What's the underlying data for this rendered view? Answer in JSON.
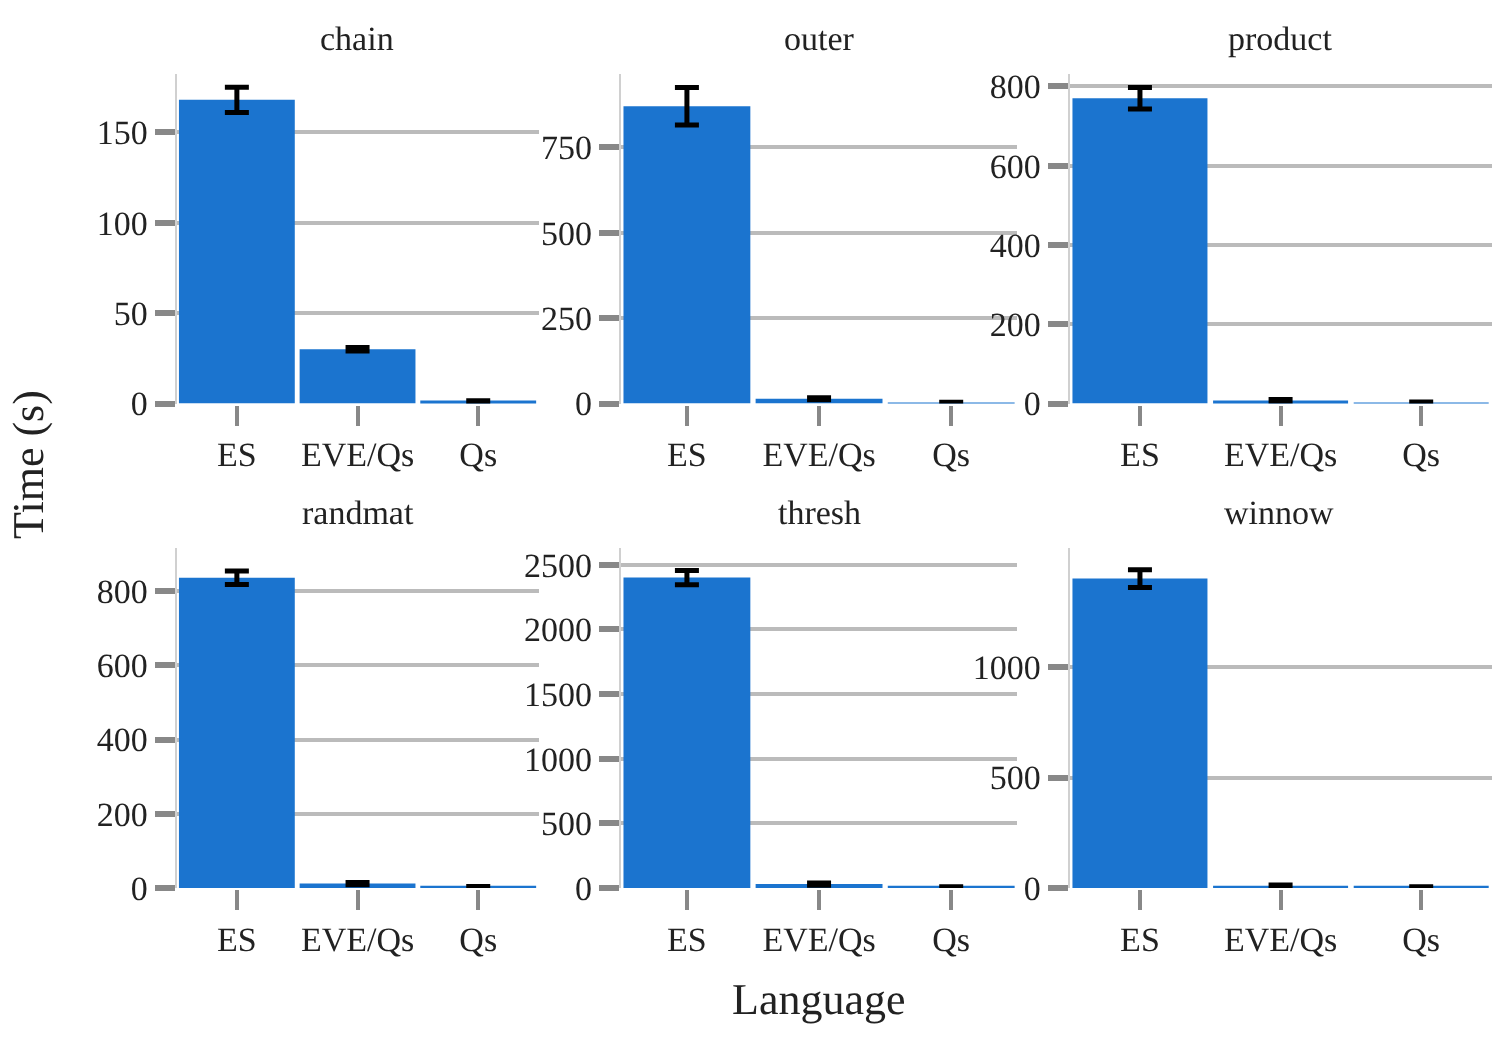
{
  "chart_data": [
    {
      "type": "bar",
      "title": "chain",
      "ylabel": "Time (s)",
      "categories": [
        "ES",
        "EVE/Qs",
        "Qs"
      ],
      "values": [
        168,
        30,
        1
      ],
      "errors": [
        7,
        1,
        0.5
      ],
      "color": "#1b74cf",
      "ylim": [
        0,
        182
      ],
      "yticks": [
        0,
        50,
        100,
        150
      ],
      "grid": "y"
    },
    {
      "type": "bar",
      "title": "outer",
      "categories": [
        "ES",
        "EVE/Qs",
        "Qs"
      ],
      "values": [
        870,
        14,
        2
      ],
      "errors": [
        55,
        3,
        2
      ],
      "color": "#1b74cf",
      "ylim": [
        0,
        963
      ],
      "yticks": [
        0,
        250,
        500,
        750
      ],
      "grid": "y"
    },
    {
      "type": "bar",
      "title": "product",
      "categories": [
        "ES",
        "EVE/Qs",
        "Qs"
      ],
      "values": [
        770,
        8,
        2
      ],
      "errors": [
        27,
        2,
        2
      ],
      "color": "#1b74cf",
      "ylim": [
        0,
        830
      ],
      "yticks": [
        0,
        200,
        400,
        600,
        800
      ],
      "grid": "y"
    },
    {
      "type": "bar",
      "title": "randmat",
      "categories": [
        "ES",
        "EVE/Qs",
        "Qs"
      ],
      "values": [
        836,
        12,
        2
      ],
      "errors": [
        18,
        3,
        2
      ],
      "color": "#1b74cf",
      "ylim": [
        0,
        917
      ],
      "yticks": [
        0,
        200,
        400,
        600,
        800
      ],
      "grid": "y"
    },
    {
      "type": "bar",
      "title": "thresh",
      "xlabel": "Language",
      "categories": [
        "ES",
        "EVE/Qs",
        "Qs"
      ],
      "values": [
        2400,
        30,
        5
      ],
      "errors": [
        55,
        8,
        5
      ],
      "color": "#1b74cf",
      "ylim": [
        0,
        2631
      ],
      "yticks": [
        0,
        500,
        1000,
        1500,
        2000,
        2500
      ],
      "grid": "y"
    },
    {
      "type": "bar",
      "title": "winnow",
      "categories": [
        "ES",
        "EVE/Qs",
        "Qs"
      ],
      "values": [
        1400,
        10,
        3
      ],
      "errors": [
        40,
        4,
        3
      ],
      "color": "#1b74cf",
      "ylim": [
        0,
        1540
      ],
      "yticks": [
        0,
        500,
        1000
      ],
      "grid": "y"
    }
  ]
}
